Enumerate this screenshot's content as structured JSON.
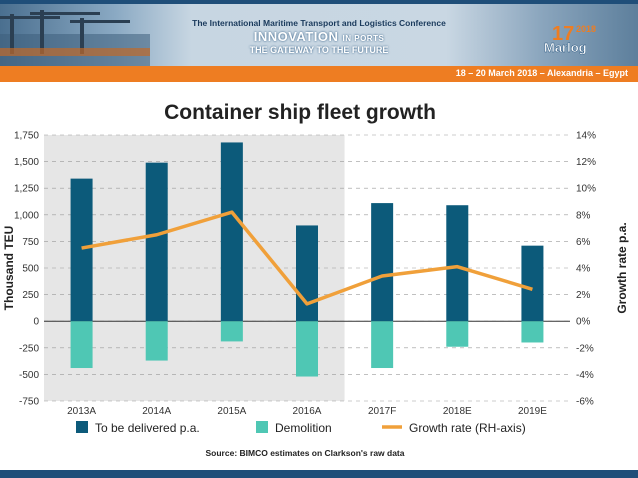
{
  "banner": {
    "conference": "The International Maritime Transport and Logistics Conference",
    "innovation": "INNOVATION",
    "in_ports": "IN PORTS",
    "gateway": "THE GATEWAY TO THE FUTURE",
    "logo_number": "17",
    "logo_year": "2018",
    "logo_text": "Marlog",
    "date_location": "18 – 20 March 2018 – Alexandria – Egypt"
  },
  "colors": {
    "delivered": "#0c5a7a",
    "demolition": "#4fc7b4",
    "growth": "#f0a03a",
    "shade": "#e6e6e6",
    "banner_orange": "#ee7d22",
    "banner_blue": "#1f4e79"
  },
  "chart_data": {
    "type": "bar",
    "title": "Container ship fleet growth",
    "categories": [
      "2013A",
      "2014A",
      "2015A",
      "2016A",
      "2017F",
      "2018E",
      "2019E"
    ],
    "series": [
      {
        "name": "To be delivered p.a.",
        "type": "bar",
        "axis": "left",
        "values": [
          1340,
          1490,
          1680,
          900,
          1110,
          1090,
          710
        ]
      },
      {
        "name": "Demolition",
        "type": "bar",
        "axis": "left",
        "values": [
          -440,
          -370,
          -190,
          -520,
          -440,
          -240,
          -200
        ]
      },
      {
        "name": "Growth rate (RH-axis)",
        "type": "line",
        "axis": "right",
        "values": [
          5.5,
          6.5,
          8.2,
          1.3,
          3.4,
          4.1,
          2.4
        ]
      }
    ],
    "ylabel": "Thousand TEU",
    "y2label": "Growth rate p.a.",
    "ylim": [
      -750,
      1750
    ],
    "y2lim": [
      -6,
      14
    ],
    "yticks": [
      "1,750",
      "1,500",
      "1,250",
      "1,000",
      "750",
      "500",
      "250",
      "0",
      "-250",
      "-500",
      "-750"
    ],
    "y2ticks": [
      "14%",
      "12%",
      "10%",
      "8%",
      "6%",
      "4%",
      "2%",
      "0%",
      "-2%",
      "-4%",
      "-6%"
    ],
    "grid": "horizontal dashed",
    "legend": "bottom",
    "source": "Source: BIMCO estimates on Clarkson's raw data"
  }
}
